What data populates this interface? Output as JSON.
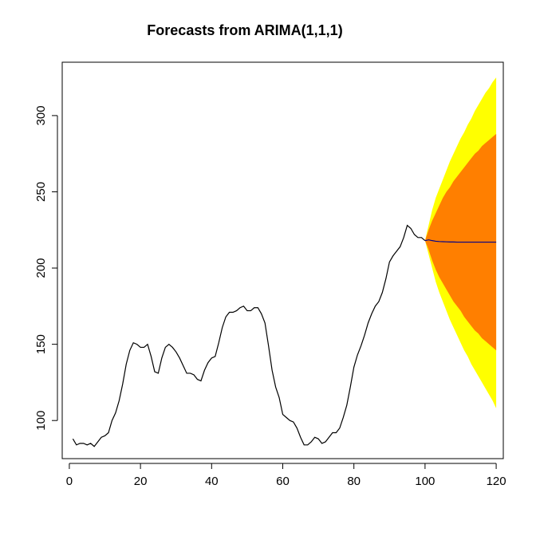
{
  "chart_data": {
    "type": "line",
    "title": "Forecasts from ARIMA(1,1,1)",
    "xlabel": "",
    "ylabel": "",
    "xlim": [
      -2,
      122
    ],
    "ylim": [
      75,
      335
    ],
    "x_ticks": [
      0,
      20,
      40,
      60,
      80,
      100,
      120
    ],
    "y_ticks": [
      100,
      150,
      200,
      250,
      300
    ],
    "grid": false,
    "legend": "none",
    "colors": {
      "history_line": "#000000",
      "forecast_line": "#00008b",
      "interval_80": "#ff7f00",
      "interval_95": "#ffff00"
    },
    "history": {
      "x": [
        1,
        2,
        3,
        4,
        5,
        6,
        7,
        8,
        9,
        10,
        11,
        12,
        13,
        14,
        15,
        16,
        17,
        18,
        19,
        20,
        21,
        22,
        23,
        24,
        25,
        26,
        27,
        28,
        29,
        30,
        31,
        32,
        33,
        34,
        35,
        36,
        37,
        38,
        39,
        40,
        41,
        42,
        43,
        44,
        45,
        46,
        47,
        48,
        49,
        50,
        51,
        52,
        53,
        54,
        55,
        56,
        57,
        58,
        59,
        60,
        61,
        62,
        63,
        64,
        65,
        66,
        67,
        68,
        69,
        70,
        71,
        72,
        73,
        74,
        75,
        76,
        77,
        78,
        79,
        80,
        81,
        82,
        83,
        84,
        85,
        86,
        87,
        88,
        89,
        90,
        91,
        92,
        93,
        94,
        95,
        96,
        97,
        98,
        99,
        100
      ],
      "y": [
        88,
        84,
        85,
        85,
        84,
        85,
        83,
        86,
        89,
        90,
        92,
        100,
        105,
        113,
        124,
        137,
        146,
        151,
        150,
        148,
        148,
        150,
        142,
        132,
        131,
        141,
        148,
        150,
        148,
        145,
        141,
        136,
        131,
        131,
        130,
        127,
        126,
        133,
        138,
        141,
        142,
        151,
        161,
        168,
        171,
        171,
        172,
        174,
        175,
        172,
        172,
        174,
        174,
        170,
        164,
        149,
        133,
        122,
        115,
        104,
        102,
        100,
        99,
        95,
        89,
        84,
        84,
        86,
        89,
        88,
        85,
        86,
        89,
        92,
        92,
        95,
        102,
        110,
        122,
        135,
        143,
        149,
        156,
        164,
        170,
        175,
        178,
        184,
        193,
        204,
        208,
        211,
        214,
        220,
        228,
        226,
        222,
        220,
        220,
        218
      ]
    },
    "forecast": {
      "x": [
        101,
        102,
        103,
        104,
        105,
        106,
        107,
        108,
        109,
        110,
        111,
        112,
        113,
        114,
        115,
        116,
        117,
        118,
        119,
        120
      ],
      "mean": [
        218.5,
        218,
        217.6,
        217.4,
        217.3,
        217.2,
        217.1,
        217.1,
        217,
        217,
        217,
        217,
        217,
        217,
        217,
        217,
        217,
        217,
        217,
        217
      ],
      "lo80": [
        212,
        205,
        199,
        194,
        190,
        186,
        182,
        178,
        175,
        172,
        168,
        165,
        162,
        159,
        157,
        154,
        152,
        150,
        148,
        146
      ],
      "hi80": [
        225,
        231,
        236,
        241,
        246,
        250,
        253,
        257,
        260,
        263,
        266,
        269,
        272,
        275,
        277,
        280,
        282,
        284,
        286,
        288
      ],
      "lo95": [
        209,
        200,
        191,
        184,
        178,
        172,
        166,
        161,
        156,
        151,
        146,
        142,
        137,
        133,
        129,
        125,
        121,
        117,
        113,
        108
      ],
      "hi95": [
        228,
        238,
        246,
        252,
        258,
        264,
        270,
        275,
        280,
        285,
        289,
        294,
        298,
        303,
        307,
        311,
        315,
        318,
        322,
        325
      ]
    }
  }
}
